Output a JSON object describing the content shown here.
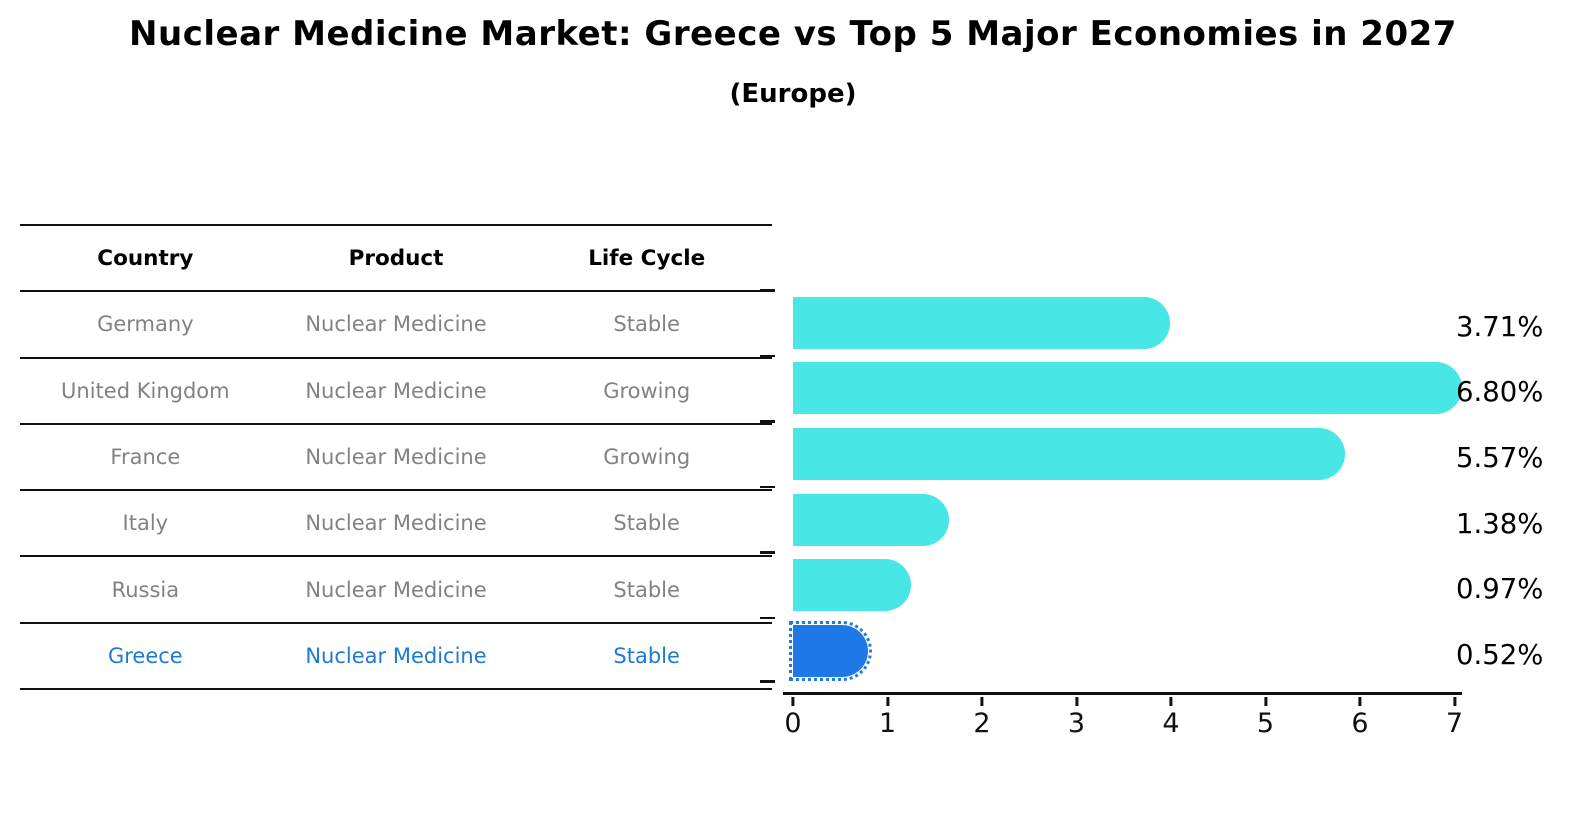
{
  "header": {
    "title": "Nuclear Medicine Market: Greece vs Top 5 Major Economies in 2027",
    "subtitle": "(Europe)"
  },
  "table": {
    "headers": [
      "Country",
      "Product",
      "Life Cycle"
    ],
    "rows": [
      {
        "country": "Germany",
        "product": "Nuclear Medicine",
        "life_cycle": "Stable",
        "highlighted": false
      },
      {
        "country": "United Kingdom",
        "product": "Nuclear Medicine",
        "life_cycle": "Growing",
        "highlighted": false
      },
      {
        "country": "France",
        "product": "Nuclear Medicine",
        "life_cycle": "Growing",
        "highlighted": false
      },
      {
        "country": "Italy",
        "product": "Nuclear Medicine",
        "life_cycle": "Stable",
        "highlighted": false
      },
      {
        "country": "Russia",
        "product": "Nuclear Medicine",
        "life_cycle": "Stable",
        "highlighted": false
      },
      {
        "country": "Greece",
        "product": "Nuclear Medicine",
        "life_cycle": "Stable",
        "highlighted": true
      }
    ]
  },
  "chart_data": {
    "type": "bar",
    "orientation": "horizontal",
    "title": "Nuclear Medicine Market: Greece vs Top 5 Major Economies in 2027 (Europe)",
    "categories": [
      "Germany",
      "United Kingdom",
      "France",
      "Italy",
      "Russia",
      "Greece"
    ],
    "values": [
      3.71,
      6.8,
      5.57,
      1.38,
      0.97,
      0.52
    ],
    "value_labels": [
      "3.71%",
      "6.80%",
      "5.57%",
      "1.38%",
      "0.97%",
      "0.52%"
    ],
    "xlim": [
      0,
      7
    ],
    "xticks": [
      "0",
      "1",
      "2",
      "3",
      "4",
      "5",
      "6",
      "7"
    ],
    "grid": false,
    "legend": false,
    "highlight_index": 5,
    "bar_color": "#49E6E6",
    "highlight_color": "#1E78E6"
  },
  "colors": {
    "bar_cyan": "#49E6E6",
    "bar_blue": "#1E78E6",
    "highlight_text_blue": "#1F7AD1",
    "table_text_gray": "#828282",
    "axis_black": "#111111"
  }
}
